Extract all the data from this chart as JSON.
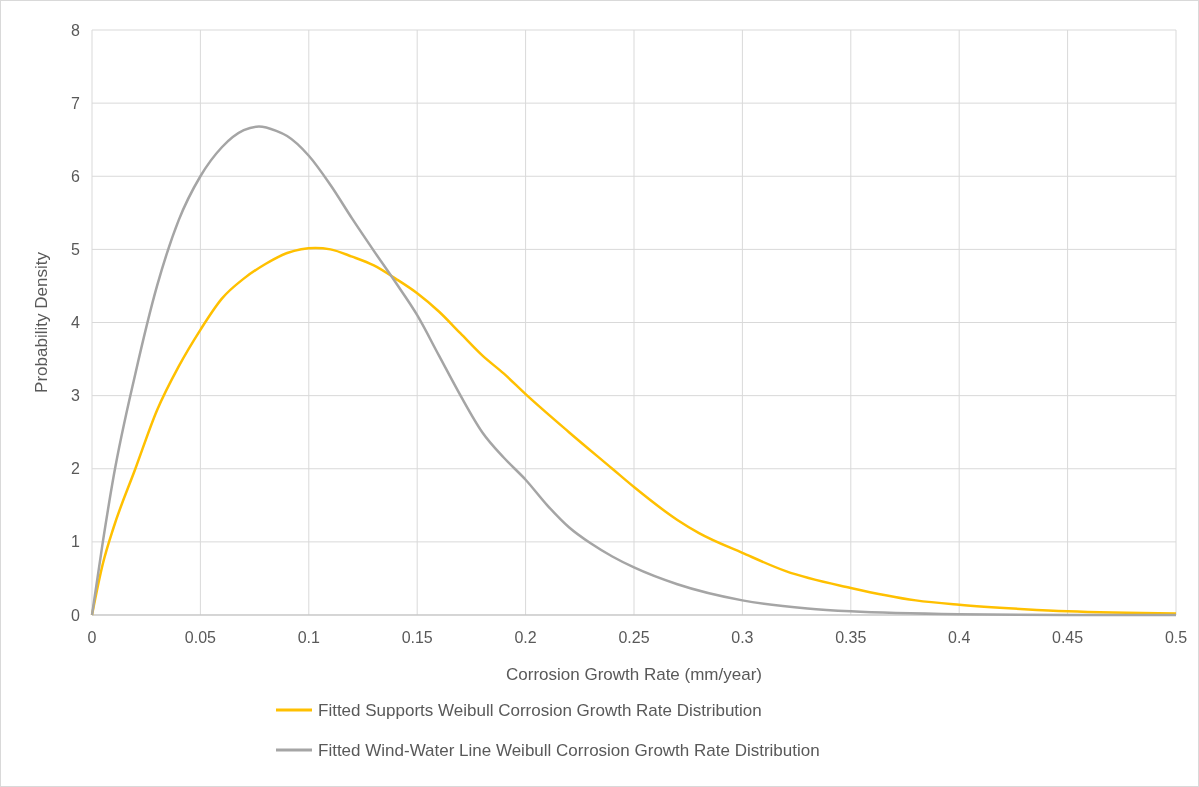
{
  "chart_data": {
    "type": "line",
    "xlabel": "Corrosion Growth Rate (mm/year)",
    "ylabel": "Probability Density",
    "xlim": [
      0,
      0.5
    ],
    "xticks": [
      0,
      0.05,
      0.1,
      0.15,
      0.2,
      0.25,
      0.3,
      0.35,
      0.4,
      0.45,
      0.5
    ],
    "ylim": [
      0,
      8
    ],
    "yticks": [
      0,
      1,
      2,
      3,
      4,
      5,
      6,
      7,
      8
    ],
    "grid": true,
    "legend": "bottom",
    "line_style": "solid",
    "series": [
      {
        "name": "Fitted Supports Weibull Corrosion Growth Rate Distribution",
        "color": "#ffc000",
        "x": [
          0,
          0.005,
          0.01,
          0.02,
          0.03,
          0.04,
          0.05,
          0.06,
          0.07,
          0.08,
          0.09,
          0.103,
          0.11,
          0.12,
          0.13,
          0.14,
          0.15,
          0.16,
          0.17,
          0.18,
          0.19,
          0.2,
          0.22,
          0.24,
          0.25,
          0.27,
          0.28,
          0.3,
          0.32,
          0.35,
          0.38,
          0.4,
          0.43,
          0.45,
          0.5
        ],
        "values": [
          0,
          0.7,
          1.2,
          2.0,
          2.8,
          3.4,
          3.9,
          4.33,
          4.6,
          4.8,
          4.95,
          5.02,
          5.0,
          4.9,
          4.78,
          4.6,
          4.4,
          4.15,
          3.85,
          3.55,
          3.3,
          3.02,
          2.5,
          2.0,
          1.75,
          1.3,
          1.12,
          0.85,
          0.6,
          0.37,
          0.2,
          0.14,
          0.08,
          0.05,
          0.02
        ]
      },
      {
        "name": "Fitted Wind-Water Line Weibull Corrosion Growth Rate Distribution",
        "color": "#a5a5a5",
        "x": [
          0,
          0.005,
          0.01,
          0.02,
          0.03,
          0.04,
          0.05,
          0.06,
          0.07,
          0.077,
          0.085,
          0.09,
          0.1,
          0.11,
          0.12,
          0.13,
          0.14,
          0.15,
          0.16,
          0.17,
          0.18,
          0.19,
          0.2,
          0.21,
          0.22,
          0.23,
          0.24,
          0.25,
          0.27,
          0.3,
          0.33,
          0.35,
          0.4,
          0.45,
          0.5
        ],
        "values": [
          0,
          1.0,
          1.9,
          3.3,
          4.5,
          5.4,
          6.0,
          6.4,
          6.63,
          6.68,
          6.62,
          6.55,
          6.28,
          5.88,
          5.42,
          4.98,
          4.55,
          4.1,
          3.55,
          3.0,
          2.5,
          2.15,
          1.85,
          1.5,
          1.2,
          0.98,
          0.8,
          0.65,
          0.42,
          0.2,
          0.09,
          0.05,
          0.01,
          0,
          0
        ]
      }
    ]
  }
}
